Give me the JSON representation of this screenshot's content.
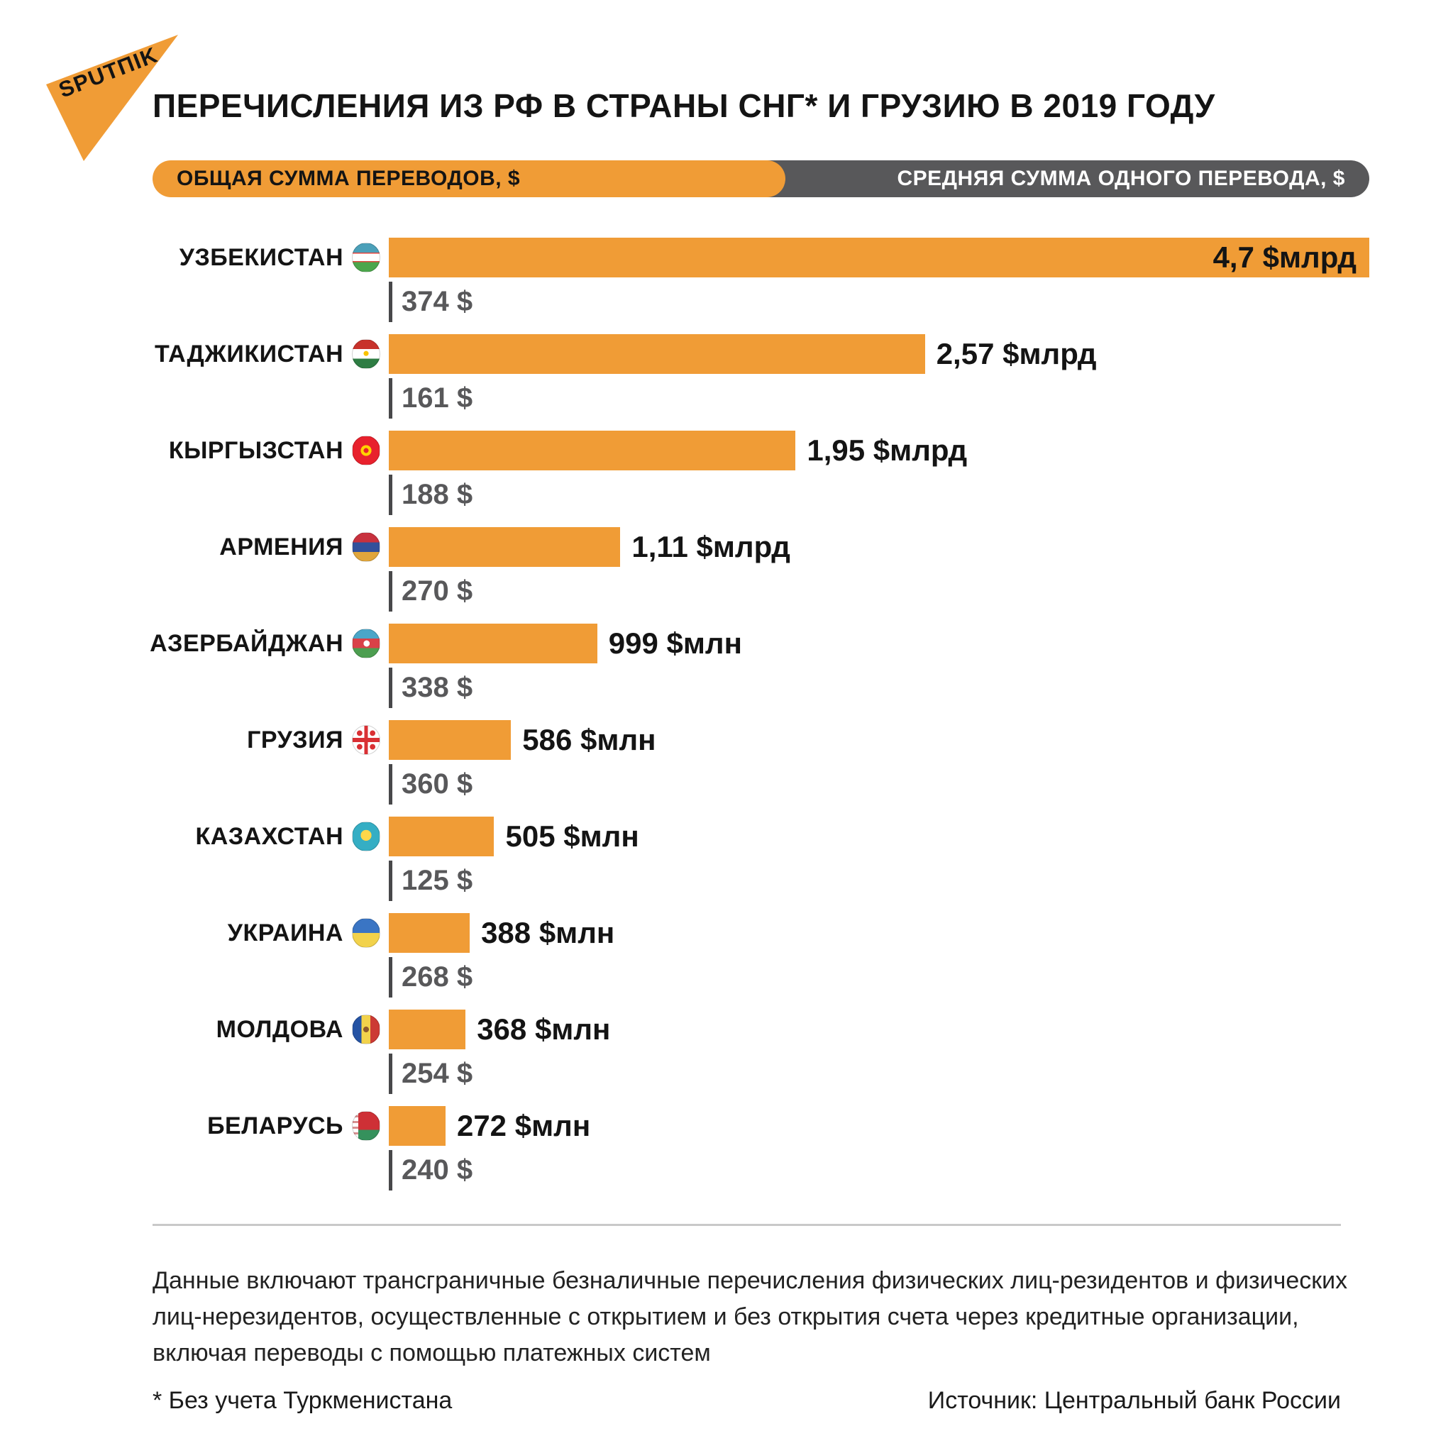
{
  "brand": {
    "logo_text": "SPUTΠIK"
  },
  "header": {
    "title": "ПЕРЕЧИСЛЕНИЯ ИЗ РФ В СТРАНЫ СНГ* И ГРУЗИЮ В 2019 ГОДУ"
  },
  "legend": {
    "total_label": "ОБЩАЯ СУММА ПЕРЕВОДОВ, $",
    "average_label": "СРЕДНЯЯ СУММА ОДНОГО ПЕРЕВОДА, $"
  },
  "colors": {
    "accent_orange": "#F09C36",
    "pill_gray": "#58585A",
    "avg_text_gray": "#58585A"
  },
  "chart_data": {
    "type": "bar",
    "orientation": "horizontal",
    "title": "ПЕРЕЧИСЛЕНИЯ ИЗ РФ В СТРАНЫ СНГ* И ГРУЗИЮ В 2019 ГОДУ",
    "series": [
      {
        "name": "ОБЩАЯ СУММА ПЕРЕВОДОВ, $",
        "unit": "USD"
      },
      {
        "name": "СРЕДНЯЯ СУММА ОДНОГО ПЕРЕВОДА, $",
        "unit": "USD"
      }
    ],
    "max_total_bln_usd": 4.7,
    "rows": [
      {
        "country": "УЗБЕКИСТАН",
        "flag": "uzbekistan",
        "total_bln_usd": 4.7,
        "total_label": "4,7 $млрд",
        "avg_usd": 374,
        "avg_label": "374 $",
        "value_inside": true
      },
      {
        "country": "ТАДЖИКИСТАН",
        "flag": "tajikistan",
        "total_bln_usd": 2.57,
        "total_label": "2,57 $млрд",
        "avg_usd": 161,
        "avg_label": "161 $"
      },
      {
        "country": "КЫРГЫЗСТАН",
        "flag": "kyrgyzstan",
        "total_bln_usd": 1.95,
        "total_label": "1,95 $млрд",
        "avg_usd": 188,
        "avg_label": "188 $"
      },
      {
        "country": "АРМЕНИЯ",
        "flag": "armenia",
        "total_bln_usd": 1.11,
        "total_label": "1,11 $млрд",
        "avg_usd": 270,
        "avg_label": "270 $"
      },
      {
        "country": "АЗЕРБАЙДЖАН",
        "flag": "azerbaijan",
        "total_bln_usd": 0.999,
        "total_label": "999 $млн",
        "avg_usd": 338,
        "avg_label": "338 $"
      },
      {
        "country": "ГРУЗИЯ",
        "flag": "georgia",
        "total_bln_usd": 0.586,
        "total_label": "586 $млн",
        "avg_usd": 360,
        "avg_label": "360 $"
      },
      {
        "country": "КАЗАХСТАН",
        "flag": "kazakhstan",
        "total_bln_usd": 0.505,
        "total_label": "505 $млн",
        "avg_usd": 125,
        "avg_label": "125 $"
      },
      {
        "country": "УКРАИНА",
        "flag": "ukraine",
        "total_bln_usd": 0.388,
        "total_label": "388 $млн",
        "avg_usd": 268,
        "avg_label": "268 $"
      },
      {
        "country": "МОЛДОВА",
        "flag": "moldova",
        "total_bln_usd": 0.368,
        "total_label": "368 $млн",
        "avg_usd": 254,
        "avg_label": "254 $"
      },
      {
        "country": "БЕЛАРУСЬ",
        "flag": "belarus",
        "total_bln_usd": 0.272,
        "total_label": "272 $млн",
        "avg_usd": 240,
        "avg_label": "240 $"
      }
    ]
  },
  "footer": {
    "note": "Данные включают трансграничные безналичные перечисления физических лиц-резидентов и физических лиц-нерезидентов, осуществленные с открытием и без открытия счета через кредитные организации, включая переводы с помощью платежных систем",
    "asterisk_note": "* Без учета Туркменистана",
    "source": "Источник: Центральный банк России"
  }
}
